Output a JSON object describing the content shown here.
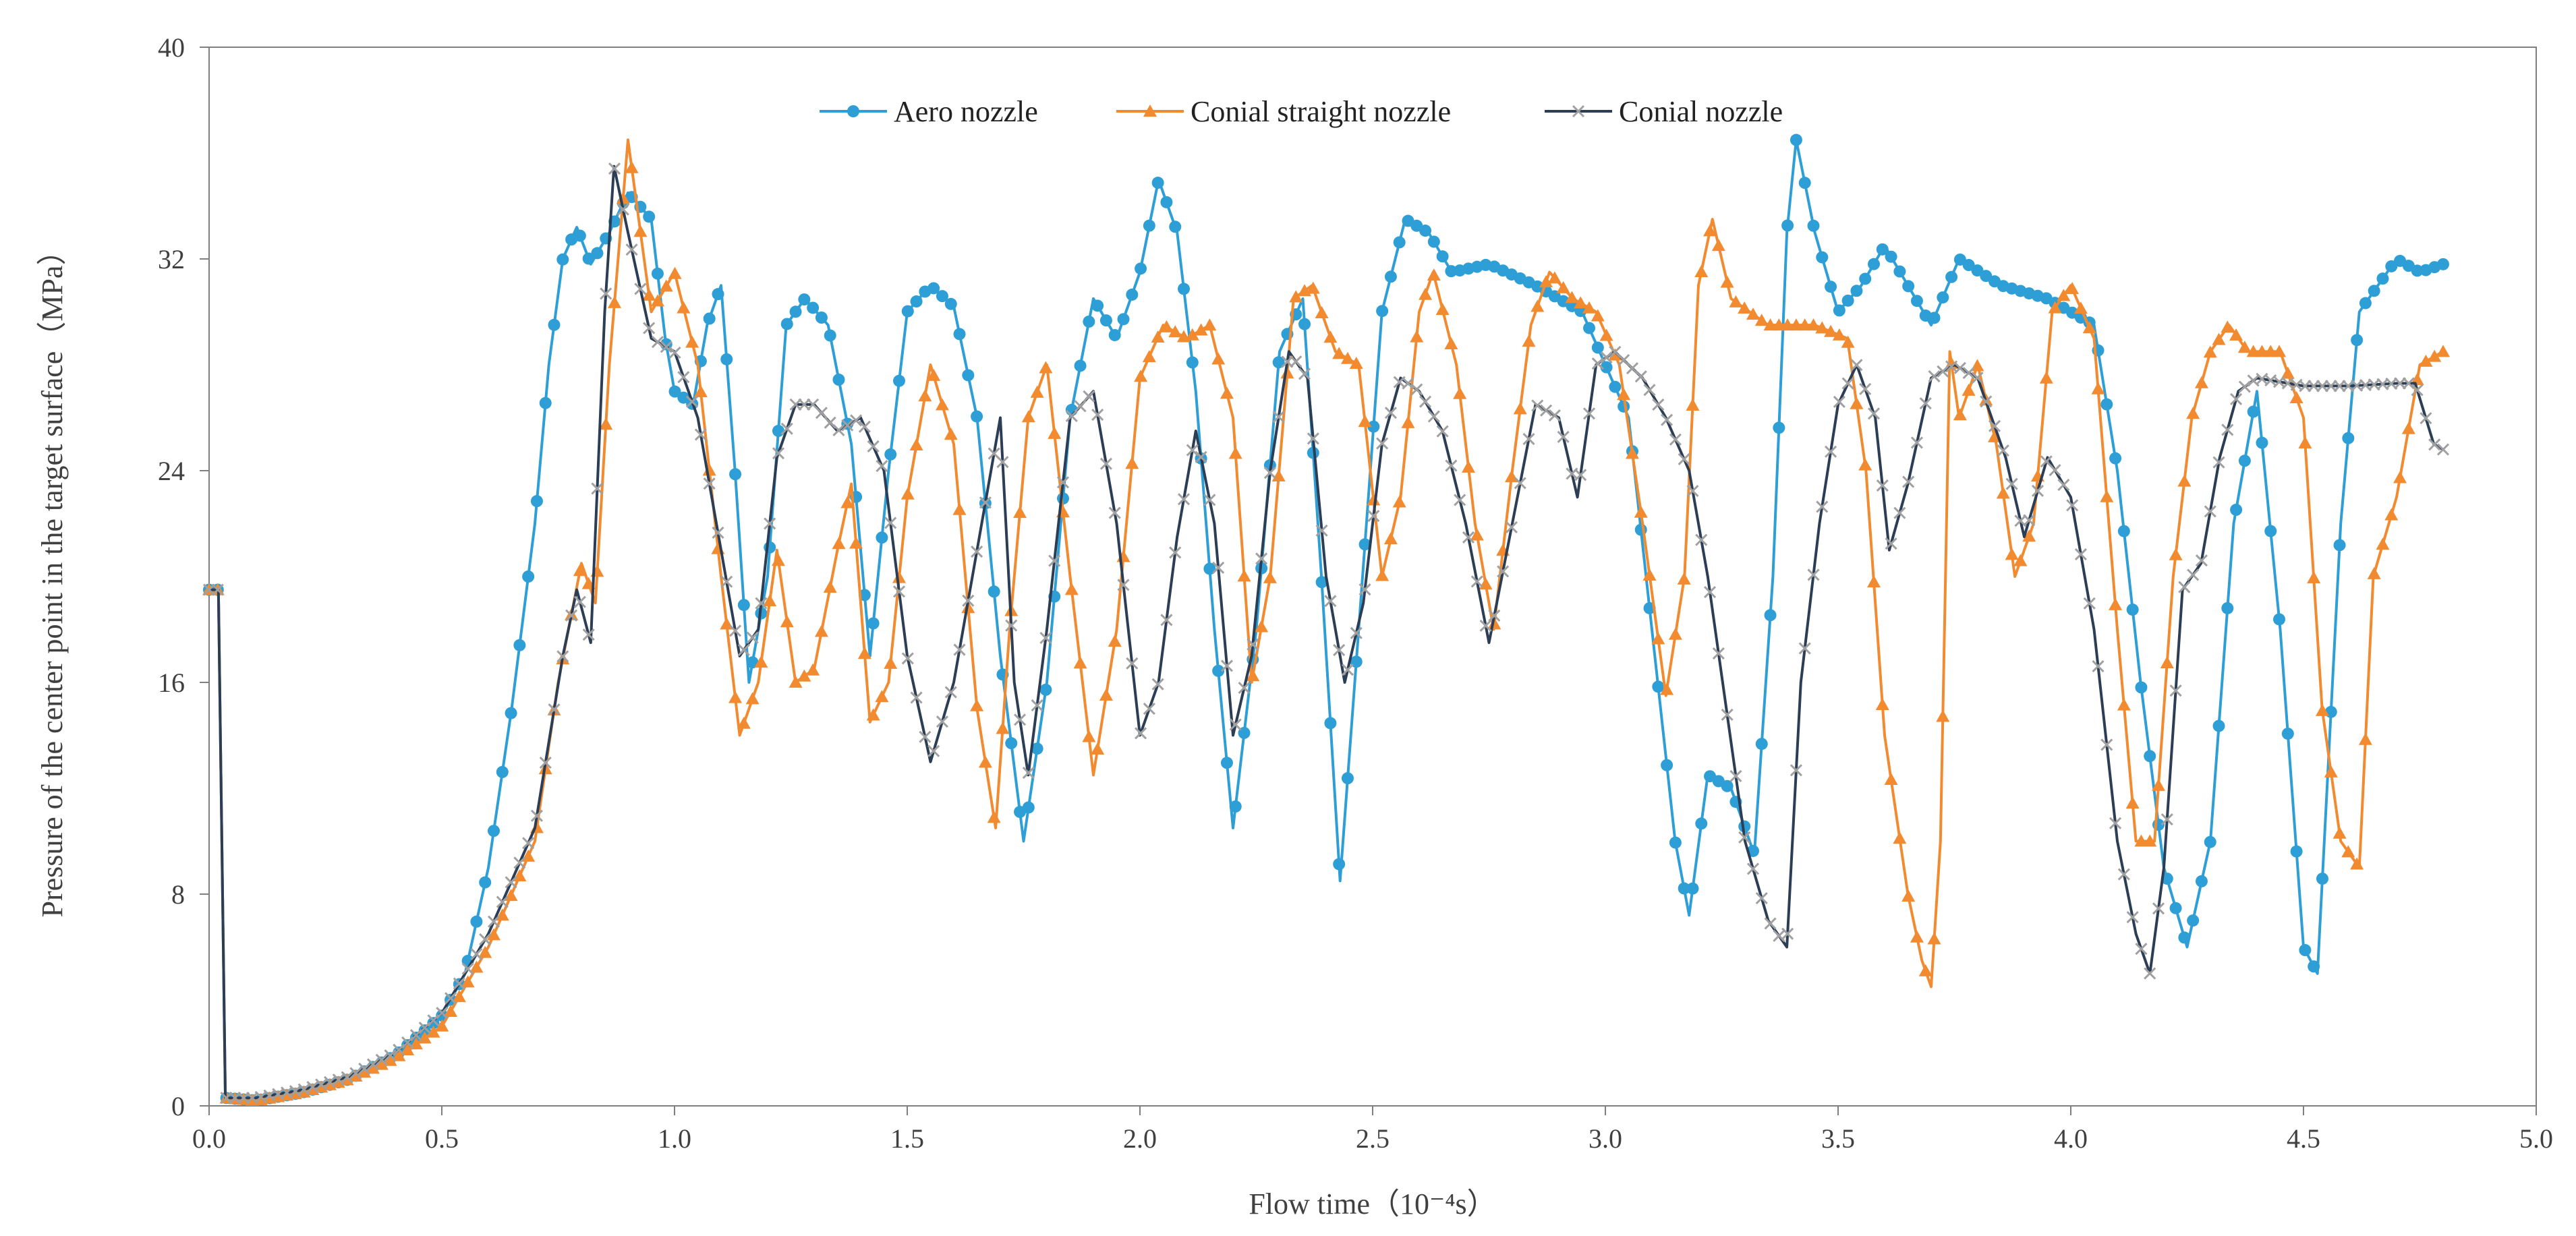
{
  "chart_data": {
    "type": "line",
    "xlabel": "Flow time（10⁻⁴s）",
    "ylabel": "Pressure of the center point in the target surface（MPa）",
    "xlim": [
      0,
      5
    ],
    "ylim": [
      0,
      40
    ],
    "xticks": [
      0.0,
      0.5,
      1.0,
      1.5,
      2.0,
      2.5,
      3.0,
      3.5,
      4.0,
      4.5,
      5.0
    ],
    "xtick_labels": [
      "0.0",
      "0.5",
      "1.0",
      "1.5",
      "2.0",
      "2.5",
      "3.0",
      "3.5",
      "4.0",
      "4.5",
      "5.0"
    ],
    "yticks": [
      0,
      8,
      16,
      24,
      32,
      40
    ],
    "ytick_labels": [
      "0",
      "8",
      "16",
      "24",
      "32",
      "40"
    ],
    "grid": false,
    "legend_position": "top-center",
    "series": [
      {
        "name": "Aero nozzle",
        "color": "#2E9FD6",
        "marker": "circle",
        "points": [
          [
            0.0,
            19.5
          ],
          [
            0.02,
            19.5
          ],
          [
            0.035,
            0.3
          ],
          [
            0.1,
            0.2
          ],
          [
            0.2,
            0.5
          ],
          [
            0.3,
            1.0
          ],
          [
            0.4,
            1.9
          ],
          [
            0.5,
            3.4
          ],
          [
            0.55,
            5.0
          ],
          [
            0.6,
            9.0
          ],
          [
            0.65,
            15.0
          ],
          [
            0.7,
            22.0
          ],
          [
            0.73,
            28.0
          ],
          [
            0.76,
            32.0
          ],
          [
            0.79,
            33.2
          ],
          [
            0.82,
            31.8
          ],
          [
            0.86,
            33.0
          ],
          [
            0.9,
            34.5
          ],
          [
            0.95,
            33.5
          ],
          [
            0.98,
            29.0
          ],
          [
            1.0,
            27.0
          ],
          [
            1.04,
            26.5
          ],
          [
            1.07,
            29.5
          ],
          [
            1.1,
            31.0
          ],
          [
            1.13,
            24.0
          ],
          [
            1.16,
            16.0
          ],
          [
            1.2,
            20.0
          ],
          [
            1.24,
            29.5
          ],
          [
            1.28,
            30.5
          ],
          [
            1.33,
            29.5
          ],
          [
            1.38,
            25.0
          ],
          [
            1.42,
            17.0
          ],
          [
            1.46,
            24.0
          ],
          [
            1.5,
            30.0
          ],
          [
            1.55,
            31.0
          ],
          [
            1.6,
            30.2
          ],
          [
            1.65,
            26.0
          ],
          [
            1.7,
            17.0
          ],
          [
            1.75,
            10.0
          ],
          [
            1.8,
            16.0
          ],
          [
            1.85,
            26.0
          ],
          [
            1.9,
            30.5
          ],
          [
            1.95,
            29.0
          ],
          [
            2.0,
            31.5
          ],
          [
            2.04,
            35.0
          ],
          [
            2.08,
            33.0
          ],
          [
            2.12,
            27.0
          ],
          [
            2.16,
            18.0
          ],
          [
            2.2,
            10.5
          ],
          [
            2.25,
            18.0
          ],
          [
            2.3,
            28.5
          ],
          [
            2.35,
            30.5
          ],
          [
            2.39,
            20.0
          ],
          [
            2.43,
            8.5
          ],
          [
            2.47,
            18.0
          ],
          [
            2.52,
            30.0
          ],
          [
            2.57,
            33.5
          ],
          [
            2.62,
            33.0
          ],
          [
            2.67,
            31.5
          ],
          [
            2.75,
            31.8
          ],
          [
            2.85,
            31.0
          ],
          [
            2.95,
            30.0
          ],
          [
            3.05,
            26.0
          ],
          [
            3.1,
            18.0
          ],
          [
            3.15,
            10.0
          ],
          [
            3.18,
            7.2
          ],
          [
            3.22,
            12.5
          ],
          [
            3.27,
            12.0
          ],
          [
            3.32,
            9.5
          ],
          [
            3.36,
            20.0
          ],
          [
            3.39,
            33.0
          ],
          [
            3.41,
            36.5
          ],
          [
            3.45,
            33.0
          ],
          [
            3.5,
            30.0
          ],
          [
            3.55,
            31.0
          ],
          [
            3.6,
            32.5
          ],
          [
            3.65,
            31.0
          ],
          [
            3.7,
            29.5
          ],
          [
            3.76,
            32.0
          ],
          [
            3.85,
            31.0
          ],
          [
            3.95,
            30.5
          ],
          [
            4.05,
            29.5
          ],
          [
            4.1,
            24.0
          ],
          [
            4.15,
            16.0
          ],
          [
            4.2,
            9.0
          ],
          [
            4.25,
            6.0
          ],
          [
            4.3,
            10.0
          ],
          [
            4.35,
            22.0
          ],
          [
            4.4,
            27.0
          ],
          [
            4.45,
            18.0
          ],
          [
            4.5,
            6.0
          ],
          [
            4.53,
            5.0
          ],
          [
            4.58,
            22.0
          ],
          [
            4.62,
            30.0
          ],
          [
            4.7,
            32.0
          ],
          [
            4.75,
            31.5
          ],
          [
            4.8,
            31.8
          ]
        ]
      },
      {
        "name": "Conial straight nozzle",
        "color": "#F28A30",
        "marker": "triangle",
        "points": [
          [
            0.0,
            19.5
          ],
          [
            0.02,
            19.5
          ],
          [
            0.035,
            0.3
          ],
          [
            0.1,
            0.2
          ],
          [
            0.2,
            0.5
          ],
          [
            0.3,
            1.0
          ],
          [
            0.4,
            1.8
          ],
          [
            0.5,
            3.0
          ],
          [
            0.6,
            6.0
          ],
          [
            0.7,
            10.0
          ],
          [
            0.75,
            16.0
          ],
          [
            0.8,
            20.5
          ],
          [
            0.83,
            19.0
          ],
          [
            0.86,
            28.0
          ],
          [
            0.9,
            36.5
          ],
          [
            0.95,
            30.0
          ],
          [
            1.0,
            31.5
          ],
          [
            1.05,
            28.0
          ],
          [
            1.1,
            20.0
          ],
          [
            1.14,
            14.0
          ],
          [
            1.18,
            16.0
          ],
          [
            1.22,
            21.0
          ],
          [
            1.26,
            16.0
          ],
          [
            1.3,
            16.5
          ],
          [
            1.35,
            21.0
          ],
          [
            1.38,
            23.5
          ],
          [
            1.42,
            14.5
          ],
          [
            1.46,
            16.0
          ],
          [
            1.5,
            23.0
          ],
          [
            1.55,
            28.0
          ],
          [
            1.6,
            25.0
          ],
          [
            1.65,
            15.0
          ],
          [
            1.69,
            10.5
          ],
          [
            1.72,
            18.0
          ],
          [
            1.76,
            26.0
          ],
          [
            1.8,
            28.0
          ],
          [
            1.85,
            20.0
          ],
          [
            1.9,
            12.5
          ],
          [
            1.95,
            18.0
          ],
          [
            2.0,
            27.5
          ],
          [
            2.05,
            29.5
          ],
          [
            2.1,
            29.0
          ],
          [
            2.15,
            29.5
          ],
          [
            2.2,
            26.0
          ],
          [
            2.24,
            16.0
          ],
          [
            2.28,
            20.0
          ],
          [
            2.33,
            30.5
          ],
          [
            2.37,
            31.0
          ],
          [
            2.42,
            28.5
          ],
          [
            2.47,
            28.0
          ],
          [
            2.52,
            20.0
          ],
          [
            2.56,
            23.0
          ],
          [
            2.6,
            30.0
          ],
          [
            2.63,
            31.5
          ],
          [
            2.68,
            28.0
          ],
          [
            2.72,
            22.0
          ],
          [
            2.76,
            18.0
          ],
          [
            2.8,
            24.0
          ],
          [
            2.84,
            29.5
          ],
          [
            2.88,
            31.5
          ],
          [
            2.93,
            30.5
          ],
          [
            2.98,
            30.0
          ],
          [
            3.03,
            28.0
          ],
          [
            3.08,
            22.0
          ],
          [
            3.13,
            15.5
          ],
          [
            3.17,
            20.0
          ],
          [
            3.2,
            31.0
          ],
          [
            3.23,
            33.5
          ],
          [
            3.27,
            30.5
          ],
          [
            3.35,
            29.5
          ],
          [
            3.45,
            29.5
          ],
          [
            3.52,
            29.0
          ],
          [
            3.56,
            24.0
          ],
          [
            3.6,
            14.0
          ],
          [
            3.65,
            8.0
          ],
          [
            3.68,
            5.5
          ],
          [
            3.7,
            4.5
          ],
          [
            3.72,
            10.0
          ],
          [
            3.74,
            28.5
          ],
          [
            3.76,
            26.0
          ],
          [
            3.8,
            28.0
          ],
          [
            3.84,
            25.0
          ],
          [
            3.88,
            20.0
          ],
          [
            3.92,
            22.0
          ],
          [
            3.96,
            30.0
          ],
          [
            4.0,
            31.0
          ],
          [
            4.05,
            29.0
          ],
          [
            4.1,
            18.0
          ],
          [
            4.14,
            10.0
          ],
          [
            4.18,
            10.0
          ],
          [
            4.22,
            20.0
          ],
          [
            4.26,
            26.0
          ],
          [
            4.3,
            28.5
          ],
          [
            4.34,
            29.5
          ],
          [
            4.38,
            28.5
          ],
          [
            4.45,
            28.5
          ],
          [
            4.5,
            26.0
          ],
          [
            4.54,
            15.0
          ],
          [
            4.58,
            10.0
          ],
          [
            4.62,
            9.0
          ],
          [
            4.65,
            20.0
          ],
          [
            4.7,
            23.0
          ],
          [
            4.75,
            28.0
          ],
          [
            4.8,
            28.5
          ]
        ]
      },
      {
        "name": "Conial nozzle",
        "color": "#2C3E55",
        "marker": "x",
        "marker_color": "#A0A0A0",
        "points": [
          [
            0.0,
            19.5
          ],
          [
            0.02,
            19.5
          ],
          [
            0.035,
            0.3
          ],
          [
            0.1,
            0.3
          ],
          [
            0.2,
            0.6
          ],
          [
            0.3,
            1.1
          ],
          [
            0.4,
            2.0
          ],
          [
            0.5,
            3.5
          ],
          [
            0.6,
            6.5
          ],
          [
            0.7,
            10.5
          ],
          [
            0.76,
            17.0
          ],
          [
            0.79,
            19.5
          ],
          [
            0.82,
            17.5
          ],
          [
            0.85,
            30.0
          ],
          [
            0.87,
            35.5
          ],
          [
            0.9,
            33.0
          ],
          [
            0.95,
            29.0
          ],
          [
            1.0,
            28.5
          ],
          [
            1.05,
            26.0
          ],
          [
            1.1,
            21.0
          ],
          [
            1.14,
            17.0
          ],
          [
            1.18,
            18.0
          ],
          [
            1.22,
            24.5
          ],
          [
            1.26,
            26.5
          ],
          [
            1.3,
            26.5
          ],
          [
            1.35,
            25.5
          ],
          [
            1.4,
            26.0
          ],
          [
            1.45,
            24.0
          ],
          [
            1.5,
            17.0
          ],
          [
            1.55,
            13.0
          ],
          [
            1.6,
            16.0
          ],
          [
            1.65,
            21.0
          ],
          [
            1.7,
            26.0
          ],
          [
            1.73,
            16.0
          ],
          [
            1.76,
            12.5
          ],
          [
            1.8,
            18.0
          ],
          [
            1.85,
            26.0
          ],
          [
            1.9,
            27.0
          ],
          [
            1.95,
            22.0
          ],
          [
            2.0,
            14.0
          ],
          [
            2.04,
            16.0
          ],
          [
            2.08,
            21.5
          ],
          [
            2.12,
            25.5
          ],
          [
            2.16,
            22.0
          ],
          [
            2.2,
            14.0
          ],
          [
            2.24,
            17.0
          ],
          [
            2.28,
            24.0
          ],
          [
            2.32,
            28.5
          ],
          [
            2.36,
            27.5
          ],
          [
            2.4,
            20.0
          ],
          [
            2.44,
            16.0
          ],
          [
            2.48,
            19.0
          ],
          [
            2.52,
            25.0
          ],
          [
            2.56,
            27.5
          ],
          [
            2.6,
            27.0
          ],
          [
            2.65,
            25.5
          ],
          [
            2.7,
            22.0
          ],
          [
            2.75,
            17.5
          ],
          [
            2.8,
            22.0
          ],
          [
            2.85,
            26.5
          ],
          [
            2.9,
            26.0
          ],
          [
            2.94,
            23.0
          ],
          [
            2.98,
            28.0
          ],
          [
            3.02,
            28.5
          ],
          [
            3.08,
            27.5
          ],
          [
            3.13,
            26.0
          ],
          [
            3.18,
            24.0
          ],
          [
            3.22,
            20.0
          ],
          [
            3.26,
            15.0
          ],
          [
            3.3,
            10.0
          ],
          [
            3.35,
            7.0
          ],
          [
            3.39,
            6.0
          ],
          [
            3.42,
            16.0
          ],
          [
            3.46,
            22.0
          ],
          [
            3.5,
            26.5
          ],
          [
            3.54,
            28.0
          ],
          [
            3.58,
            26.0
          ],
          [
            3.61,
            21.0
          ],
          [
            3.65,
            23.5
          ],
          [
            3.7,
            27.5
          ],
          [
            3.75,
            28.0
          ],
          [
            3.8,
            27.5
          ],
          [
            3.86,
            24.5
          ],
          [
            3.9,
            21.5
          ],
          [
            3.95,
            24.5
          ],
          [
            4.0,
            23.0
          ],
          [
            4.05,
            18.0
          ],
          [
            4.1,
            10.0
          ],
          [
            4.14,
            6.5
          ],
          [
            4.17,
            5.0
          ],
          [
            4.2,
            9.0
          ],
          [
            4.24,
            19.5
          ],
          [
            4.28,
            20.5
          ],
          [
            4.32,
            24.5
          ],
          [
            4.36,
            27.0
          ],
          [
            4.4,
            27.5
          ],
          [
            4.5,
            27.2
          ],
          [
            4.6,
            27.2
          ],
          [
            4.7,
            27.3
          ],
          [
            4.74,
            27.3
          ],
          [
            4.78,
            25.0
          ],
          [
            4.8,
            24.8
          ]
        ]
      }
    ]
  }
}
